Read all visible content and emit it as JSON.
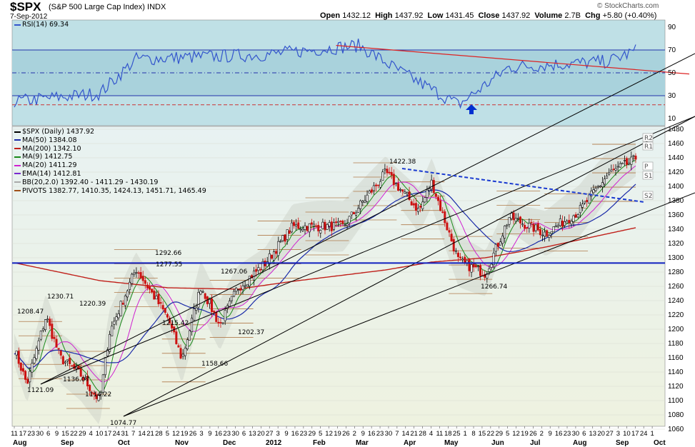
{
  "header": {
    "symbol": "$SPX",
    "name": "(S&P 500 Large Cap Index)",
    "exchange": "INDX",
    "date": "7-Sep-2012",
    "open_label": "Open",
    "open": "1432.12",
    "high_label": "High",
    "high": "1437.92",
    "low_label": "Low",
    "low": "1431.45",
    "close_label": "Close",
    "close": "1437.92",
    "volume_label": "Volume",
    "volume": "2.7B",
    "chg_label": "Chg",
    "chg": "+5.80 (+0.40%)",
    "brand": "© StockCharts.com"
  },
  "rsi_panel": {
    "label": "RSI(14) 69.34",
    "y_ticks": [
      "90",
      "70",
      "50",
      "30",
      "10"
    ],
    "levels": [
      70,
      50,
      30
    ],
    "colors": {
      "line": "#3355cc",
      "downtrend": "#d22",
      "arrow": "#0030d0"
    }
  },
  "price_panel": {
    "legend": [
      {
        "text": "$SPX (Daily) 1437.92",
        "color": "#000000"
      },
      {
        "text": "MA(50) 1384.08",
        "color": "#1a2aa8"
      },
      {
        "text": "MA(200) 1342.10",
        "color": "#c0201a"
      },
      {
        "text": "MA(9) 1412.75",
        "color": "#1a8a1a"
      },
      {
        "text": "MA(20) 1411.29",
        "color": "#d020d0"
      },
      {
        "text": "EMA(14) 1412.81",
        "color": "#7a2ad0"
      },
      {
        "text": "BB(20,2.0) 1392.40 - 1411.29 - 1430.19",
        "color": "#aaaaaa"
      },
      {
        "text": "PIVOTS 1382.77, 1410.35, 1424.13, 1451.71, 1465.49",
        "color": "#a0501a"
      }
    ],
    "y_ticks": [
      "1480",
      "1460",
      "1440",
      "1420",
      "1400",
      "1380",
      "1360",
      "1340",
      "1320",
      "1300",
      "1280",
      "1260",
      "1240",
      "1220",
      "1200",
      "1180",
      "1160",
      "1140",
      "1120",
      "1100",
      "1080",
      "1060"
    ],
    "pivot_labels": [
      "R2",
      "R1",
      "P",
      "S1",
      "S2"
    ],
    "annotations": [
      "1422.38",
      "1292.66",
      "1277.55",
      "1267.06",
      "1230.71",
      "1220.39",
      "1208.47",
      "1215.42",
      "1202.37",
      "1158.66",
      "1136.07",
      "1121.09",
      "1114.22",
      "1074.77",
      "1266.74"
    ],
    "support_level": 1292.66,
    "x_day_ticks": [
      "11",
      "17",
      "23",
      "30",
      "6",
      "9",
      "15",
      "22",
      "29",
      "4",
      "10",
      "17",
      "24",
      "31",
      "7",
      "14",
      "21",
      "28",
      "5",
      "12",
      "19",
      "26",
      "3",
      "9",
      "16",
      "23",
      "30",
      "6",
      "13",
      "20",
      "27",
      "3",
      "9",
      "16",
      "23",
      "29",
      "5",
      "12",
      "19",
      "26",
      "2",
      "9",
      "16",
      "23",
      "30",
      "7",
      "14",
      "21",
      "28",
      "4",
      "11",
      "18",
      "25",
      "1",
      "8",
      "15",
      "22",
      "29",
      "5",
      "12",
      "19",
      "26",
      "2",
      "9",
      "16",
      "23",
      "30",
      "6",
      "13",
      "20",
      "27",
      "3",
      "10",
      "17",
      "24",
      "1"
    ],
    "x_month_labels": [
      "Aug",
      "Sep",
      "Oct",
      "Nov",
      "Dec",
      "2012",
      "Feb",
      "Mar",
      "Apr",
      "May",
      "Jun",
      "Jul",
      "Aug",
      "Sep",
      "Oct"
    ],
    "colors": {
      "ma50": "#1a2aa8",
      "ma200": "#c0201a",
      "ma9": "#1a8a1a",
      "ma20": "#d020d0",
      "up": "#000000",
      "down": "#cc1111",
      "channel": "#000000",
      "trendline": "#1a3ad0"
    }
  },
  "chart_data": {
    "type": "line",
    "title": "$SPX (S&P 500 Large Cap Index) INDX",
    "ylim": [
      1060,
      1480
    ],
    "rsi_ylim": [
      0,
      100
    ],
    "series": [
      {
        "name": "$SPX (Daily)",
        "x": [
          "2011-08-11",
          "2011-08-19",
          "2011-08-31",
          "2011-09-09",
          "2011-09-22",
          "2011-10-04",
          "2011-10-10",
          "2011-10-27",
          "2011-11-16",
          "2011-11-25",
          "2011-12-07",
          "2011-12-19",
          "2011-12-30",
          "2012-01-17",
          "2012-02-03",
          "2012-03-06",
          "2012-04-02",
          "2012-04-23",
          "2012-05-01",
          "2012-05-18",
          "2012-06-04",
          "2012-06-19",
          "2012-07-12",
          "2012-08-02",
          "2012-08-21",
          "2012-09-07"
        ],
        "values": [
          1172,
          1123,
          1218,
          1160,
          1136,
          1099,
          1194,
          1285,
          1216,
          1158,
          1260,
          1205,
          1257,
          1293,
          1344,
          1344,
          1419,
          1366,
          1406,
          1295,
          1278,
          1357,
          1334,
          1365,
          1418,
          1437.92
        ]
      },
      {
        "name": "MA(50)",
        "x": [
          "2011-08-11",
          "2011-10-04",
          "2011-11-16",
          "2011-12-30",
          "2012-02-03",
          "2012-04-02",
          "2012-05-01",
          "2012-06-04",
          "2012-07-12",
          "2012-09-07"
        ],
        "values": [
          1270,
          1175,
          1210,
          1230,
          1285,
          1370,
          1390,
          1355,
          1335,
          1384.08
        ]
      },
      {
        "name": "MA(200)",
        "x": [
          "2011-08-11",
          "2011-10-04",
          "2011-11-16",
          "2011-12-30",
          "2012-02-03",
          "2012-04-02",
          "2012-05-01",
          "2012-06-04",
          "2012-07-12",
          "2012-09-07"
        ],
        "values": [
          1293,
          1268,
          1258,
          1256,
          1267,
          1283,
          1294,
          1300,
          1315,
          1342.1
        ]
      },
      {
        "name": "RSI(14)",
        "x": [
          "2011-08-11",
          "2011-10-04",
          "2011-10-27",
          "2012-01-17",
          "2012-03-16",
          "2012-04-10",
          "2012-05-18",
          "2012-06-19",
          "2012-08-21",
          "2012-09-07"
        ],
        "values": [
          25,
          32,
          62,
          66,
          74,
          52,
          22,
          55,
          60,
          69.34
        ]
      }
    ]
  }
}
